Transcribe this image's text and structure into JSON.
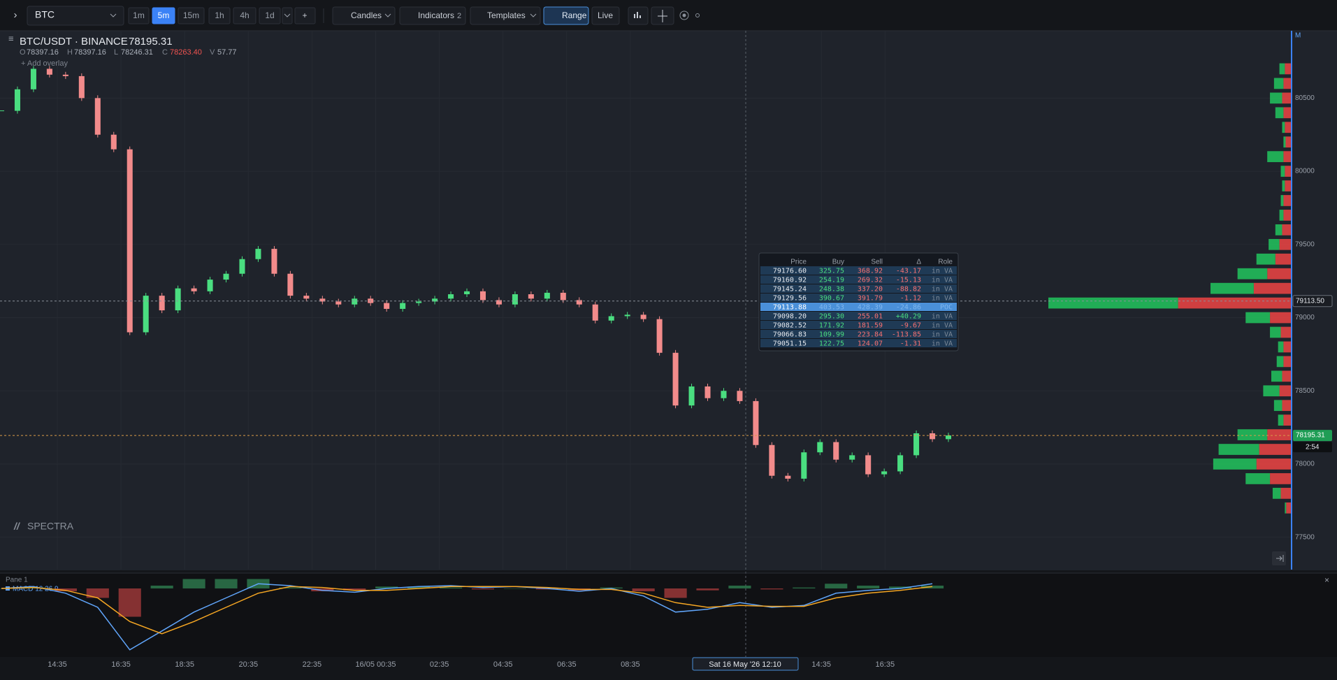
{
  "toolbar": {
    "symbol": "BTC",
    "intervals": [
      {
        "label": "1m",
        "active": false
      },
      {
        "label": "5m",
        "active": true
      },
      {
        "label": "15m",
        "active": false
      },
      {
        "label": "1h",
        "active": false
      },
      {
        "label": "4h",
        "active": false
      },
      {
        "label": "1d",
        "active": false
      }
    ],
    "add": "+",
    "chart_style": "Candles",
    "indicators": {
      "label": "Indicators",
      "count": "2"
    },
    "templates": "Templates",
    "range": "Range",
    "live": "Live"
  },
  "chart_data": {
    "type": "candlestick",
    "title": "BTC/USDT · BINANCE",
    "last_price": 78195.31,
    "ohlcv": [
      {
        "label": "O",
        "value": 78397.16
      },
      {
        "label": "H",
        "value": 78397.16
      },
      {
        "label": "L",
        "value": 78246.31
      },
      {
        "label": "C",
        "value": 78263.4,
        "value_label": "78263.40",
        "color": "#ef5350"
      },
      {
        "label": "V",
        "value": 57.77
      }
    ],
    "overlay_link": "+ Add overlay",
    "watermark": "SPECTRA",
    "axis_mode": "M",
    "up_color": "#4ade80",
    "down_color": "#f28b8b",
    "closes": [
      80413,
      80560,
      80700,
      80660,
      80650,
      80500,
      80250,
      80150,
      78900,
      79150,
      79050,
      79200,
      79180,
      79260,
      79300,
      79400,
      79470,
      79300,
      79150,
      79130,
      79110,
      79090,
      79130,
      79100,
      79060,
      79100,
      79110,
      79130,
      79160,
      79180,
      79120,
      79090,
      79160,
      79130,
      79170,
      79120,
      79090,
      78980,
      79010,
      79020,
      78990,
      78760,
      78400,
      78530,
      78450,
      78500,
      78430,
      78130,
      77920,
      77900,
      78080,
      78150,
      78030,
      78060,
      77930,
      77950,
      78060,
      78210,
      78170,
      78195.31
    ],
    "ylim": [
      77279,
      80960
    ],
    "yticks": [
      80500,
      80000,
      79500,
      79000,
      78500,
      78000,
      77500
    ],
    "grid": true,
    "poc_line": {
      "value": 79113.5,
      "label": "79113.50"
    },
    "last_line": {
      "value": 78195.31,
      "label": "78195.31"
    },
    "countdown": "2:54",
    "x_labels": [
      "14:35",
      "16:35",
      "18:35",
      "20:35",
      "22:35",
      "16/05 00:35",
      "02:35",
      "04:35",
      "06:35",
      "08:35",
      "14:35",
      "16:35"
    ],
    "crosshair_label": "Sat 16 May '26 12:10",
    "volume_profile": {
      "buy_color": "#22c55e",
      "sell_color": "#ef4444",
      "prices": [
        80700,
        80600,
        80500,
        80400,
        80300,
        80200,
        80100,
        80000,
        79900,
        79800,
        79700,
        79600,
        79500,
        79400,
        79300,
        79200,
        79100,
        79000,
        78900,
        78800,
        78700,
        78600,
        78500,
        78400,
        78300,
        78200,
        78100,
        78000,
        77900,
        77800,
        77700
      ],
      "buy": [
        20,
        35,
        45,
        30,
        10,
        8,
        60,
        15,
        10,
        10,
        15,
        25,
        40,
        70,
        110,
        160,
        480,
        90,
        40,
        20,
        25,
        40,
        60,
        30,
        20,
        110,
        150,
        160,
        90,
        30,
        5
      ],
      "sell": [
        25,
        30,
        35,
        30,
        25,
        22,
        30,
        25,
        25,
        30,
        30,
        35,
        45,
        60,
        90,
        140,
        420,
        80,
        40,
        30,
        30,
        35,
        45,
        35,
        30,
        90,
        120,
        130,
        80,
        40,
        20
      ]
    },
    "tooltip_table": {
      "columns": [
        "Price",
        "Buy",
        "Sell",
        "Δ",
        "Role"
      ],
      "highlight_row": 4,
      "rows": [
        [
          "79176.60",
          "325.75",
          "368.92",
          "-43.17",
          "in VA"
        ],
        [
          "79160.92",
          "254.19",
          "269.32",
          "-15.13",
          "in VA"
        ],
        [
          "79145.24",
          "248.38",
          "337.20",
          "-88.82",
          "in VA"
        ],
        [
          "79129.56",
          "390.67",
          "391.79",
          "-1.12",
          "in VA"
        ],
        [
          "79113.88",
          "403.53",
          "428.39",
          "-24.86",
          "POC"
        ],
        [
          "79098.20",
          "295.30",
          "255.01",
          "+40.29",
          "in VA"
        ],
        [
          "79082.52",
          "171.92",
          "181.59",
          "-9.67",
          "in VA"
        ],
        [
          "79066.83",
          "109.99",
          "223.84",
          "-113.85",
          "in VA"
        ],
        [
          "79051.15",
          "122.75",
          "124.07",
          "-1.31",
          "in VA"
        ]
      ]
    },
    "indicator_pane": {
      "title": "Pane 1",
      "label": "MACD 12 26 9",
      "close": "×",
      "macd_color": "#60a5fa",
      "signal_color": "#f5a623",
      "macd": [
        0,
        2,
        -5,
        -20,
        -65,
        -45,
        -25,
        -10,
        5,
        3,
        -2,
        -4,
        0,
        2,
        3,
        1,
        2,
        0,
        -3,
        0,
        -8,
        -25,
        -22,
        -15,
        -20,
        -18,
        -5,
        -2,
        0,
        5
      ],
      "signal": [
        0,
        1,
        -2,
        -10,
        -35,
        -48,
        -35,
        -20,
        -5,
        2,
        1,
        -2,
        -2,
        0,
        2,
        2,
        2,
        1,
        -1,
        -1,
        -5,
        -15,
        -20,
        -18,
        -19,
        -19,
        -10,
        -5,
        -2,
        2
      ],
      "histogram": [
        0,
        1,
        -3,
        -10,
        -30,
        3,
        10,
        10,
        10,
        1,
        -3,
        -2,
        2,
        2,
        1,
        -1,
        0,
        -1,
        -2,
        1,
        -3,
        -10,
        -2,
        3,
        -1,
        1,
        5,
        3,
        2,
        3
      ]
    }
  }
}
